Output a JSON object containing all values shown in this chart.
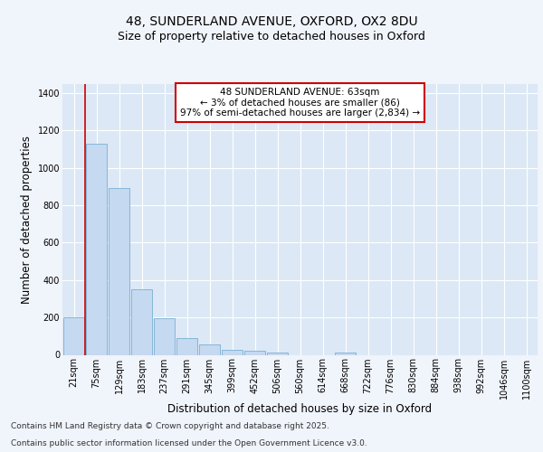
{
  "title1": "48, SUNDERLAND AVENUE, OXFORD, OX2 8DU",
  "title2": "Size of property relative to detached houses in Oxford",
  "xlabel": "Distribution of detached houses by size in Oxford",
  "ylabel": "Number of detached properties",
  "categories": [
    "21sqm",
    "75sqm",
    "129sqm",
    "183sqm",
    "237sqm",
    "291sqm",
    "345sqm",
    "399sqm",
    "452sqm",
    "506sqm",
    "560sqm",
    "614sqm",
    "668sqm",
    "722sqm",
    "776sqm",
    "830sqm",
    "884sqm",
    "938sqm",
    "992sqm",
    "1046sqm",
    "1100sqm"
  ],
  "values": [
    200,
    1130,
    893,
    352,
    195,
    90,
    58,
    25,
    20,
    10,
    0,
    0,
    10,
    0,
    0,
    0,
    0,
    0,
    0,
    0,
    0
  ],
  "bar_color": "#c5d9f0",
  "bar_edge_color": "#7bafd4",
  "annotation_text": "48 SUNDERLAND AVENUE: 63sqm\n← 3% of detached houses are smaller (86)\n97% of semi-detached houses are larger (2,834) →",
  "footer1": "Contains HM Land Registry data © Crown copyright and database right 2025.",
  "footer2": "Contains public sector information licensed under the Open Government Licence v3.0.",
  "ylim": [
    0,
    1450
  ],
  "yticks": [
    0,
    200,
    400,
    600,
    800,
    1000,
    1200,
    1400
  ],
  "fig_bg_color": "#f0f4fb",
  "plot_bg_color": "#dce8f5",
  "grid_color": "#ffffff",
  "red_line_color": "#cc0000",
  "ann_bg_color": "#ffffff",
  "ann_edge_color": "#cc0000",
  "title1_fontsize": 10,
  "title2_fontsize": 9,
  "axis_label_fontsize": 8.5,
  "tick_fontsize": 7,
  "ann_fontsize": 7.5,
  "footer_fontsize": 6.5,
  "red_line_x": 0.5
}
